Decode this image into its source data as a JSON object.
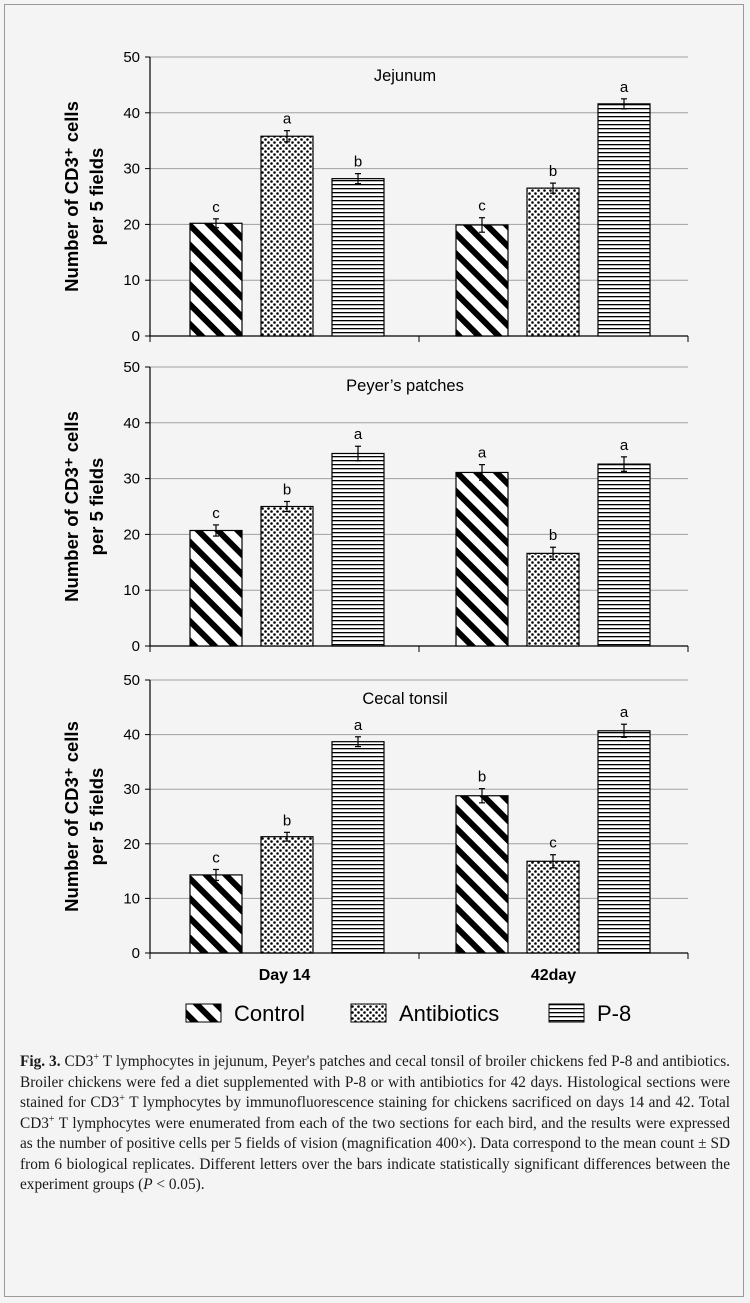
{
  "chart_data": [
    {
      "type": "bar",
      "title": "Jejunum",
      "ylabel_line1": "Number of CD3⁺ cells",
      "ylabel_line2": "per 5 fields",
      "ylim": [
        0,
        50
      ],
      "yticks": [
        0,
        10,
        20,
        30,
        40,
        50
      ],
      "grid": true,
      "categories": [
        "Day 14",
        "42day"
      ],
      "series": [
        {
          "name": "Control",
          "values": [
            20.2,
            19.9
          ],
          "errors": [
            0.8,
            1.3
          ],
          "letters": [
            "c",
            "c"
          ]
        },
        {
          "name": "Antibiotics",
          "values": [
            35.8,
            26.5
          ],
          "errors": [
            1.0,
            0.9
          ],
          "letters": [
            "a",
            "b"
          ]
        },
        {
          "name": "P-8",
          "values": [
            28.2,
            41.6
          ],
          "errors": [
            0.9,
            0.9
          ],
          "letters": [
            "b",
            "a"
          ]
        }
      ]
    },
    {
      "type": "bar",
      "title": "Peyer’s patches",
      "ylabel_line1": "Number of CD3⁺ cells",
      "ylabel_line2": "per 5 fields",
      "ylim": [
        0,
        50
      ],
      "yticks": [
        0,
        10,
        20,
        30,
        40,
        50
      ],
      "grid": true,
      "categories": [
        "Day 14",
        "42day"
      ],
      "series": [
        {
          "name": "Control",
          "values": [
            20.7,
            31.1
          ],
          "errors": [
            1.0,
            1.4
          ],
          "letters": [
            "c",
            "a"
          ]
        },
        {
          "name": "Antibiotics",
          "values": [
            25.0,
            16.6
          ],
          "errors": [
            0.9,
            1.1
          ],
          "letters": [
            "b",
            "b"
          ]
        },
        {
          "name": "P-8",
          "values": [
            34.5,
            32.6
          ],
          "errors": [
            1.3,
            1.3
          ],
          "letters": [
            "a",
            "a"
          ]
        }
      ]
    },
    {
      "type": "bar",
      "title": "Cecal tonsil",
      "ylabel_line1": "Number of CD3⁺ cells",
      "ylabel_line2": "per 5 fields",
      "ylim": [
        0,
        50
      ],
      "yticks": [
        0,
        10,
        20,
        30,
        40,
        50
      ],
      "grid": true,
      "categories": [
        "Day 14",
        "42day"
      ],
      "series": [
        {
          "name": "Control",
          "values": [
            14.3,
            28.8
          ],
          "errors": [
            1.0,
            1.3
          ],
          "letters": [
            "c",
            "b"
          ]
        },
        {
          "name": "Antibiotics",
          "values": [
            21.3,
            16.8
          ],
          "errors": [
            0.8,
            1.2
          ],
          "letters": [
            "b",
            "c"
          ]
        },
        {
          "name": "P-8",
          "values": [
            38.7,
            40.7
          ],
          "errors": [
            0.9,
            1.2
          ],
          "letters": [
            "a",
            "a"
          ]
        }
      ]
    }
  ],
  "legend": {
    "placement": "bottom",
    "items": [
      {
        "label": "Control",
        "pattern": "diagonal-stripes"
      },
      {
        "label": "Antibiotics",
        "pattern": "dots"
      },
      {
        "label": "P-8",
        "pattern": "horizontal-stripes"
      }
    ]
  },
  "caption": {
    "label": "Fig. 3.",
    "t1": " CD3",
    "sup1": "+",
    "t2": " T lymphocytes in jejunum, Peyer's patches and cecal tonsil of broiler chickens fed P-8 and antibiotics. Broiler chickens were fed a diet supplemented with P-8 or with antibiotics for 42 days. Histological sections were stained for CD3",
    "sup2": "+",
    "t3": " T lymphocytes by immunofluorescence staining for chickens sacrificed on days 14 and 42. Total CD3",
    "sup3": "+",
    "t4": " T lymphocytes were enumerated from each of the two sections for each bird, and the results were expressed as the number of positive cells per 5 fields of vision (magnification 400×). Data correspond to the mean count ± SD from 6 biological replicates. Different letters over the bars indicate statistically significant differences between the experiment groups (",
    "p": "P",
    "t5": " < 0.05)."
  },
  "colors": {
    "background": "#f4f4f4",
    "bar_fill": "#ffffff",
    "ink": "#000000",
    "grid": "#a0a0a0"
  }
}
